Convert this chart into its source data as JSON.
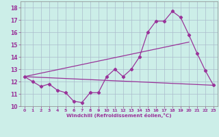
{
  "xlabel": "Windchill (Refroidissement éolien,°C)",
  "bg_color": "#cceee8",
  "grid_color": "#aabbcc",
  "line_color": "#993399",
  "xlim": [
    -0.5,
    23.5
  ],
  "ylim": [
    10,
    18.5
  ],
  "xticks": [
    0,
    1,
    2,
    3,
    4,
    5,
    6,
    7,
    8,
    9,
    10,
    11,
    12,
    13,
    14,
    15,
    16,
    17,
    18,
    19,
    20,
    21,
    22,
    23
  ],
  "yticks": [
    10,
    11,
    12,
    13,
    14,
    15,
    16,
    17,
    18
  ],
  "series1_x": [
    0,
    1,
    2,
    3,
    4,
    5,
    6,
    7,
    8,
    9,
    10,
    11,
    12,
    13,
    14,
    15,
    16,
    17,
    18,
    19,
    20,
    21,
    22,
    23
  ],
  "series1_y": [
    12.4,
    12.0,
    11.6,
    11.8,
    11.3,
    11.1,
    10.4,
    10.3,
    11.1,
    11.1,
    12.4,
    13.0,
    12.4,
    13.0,
    14.0,
    16.0,
    16.9,
    16.9,
    17.7,
    17.2,
    15.8,
    14.3,
    12.9,
    11.7
  ],
  "series2_x": [
    0,
    23
  ],
  "series2_y": [
    12.4,
    11.7
  ],
  "series3_x": [
    0,
    20
  ],
  "series3_y": [
    12.4,
    15.2
  ]
}
